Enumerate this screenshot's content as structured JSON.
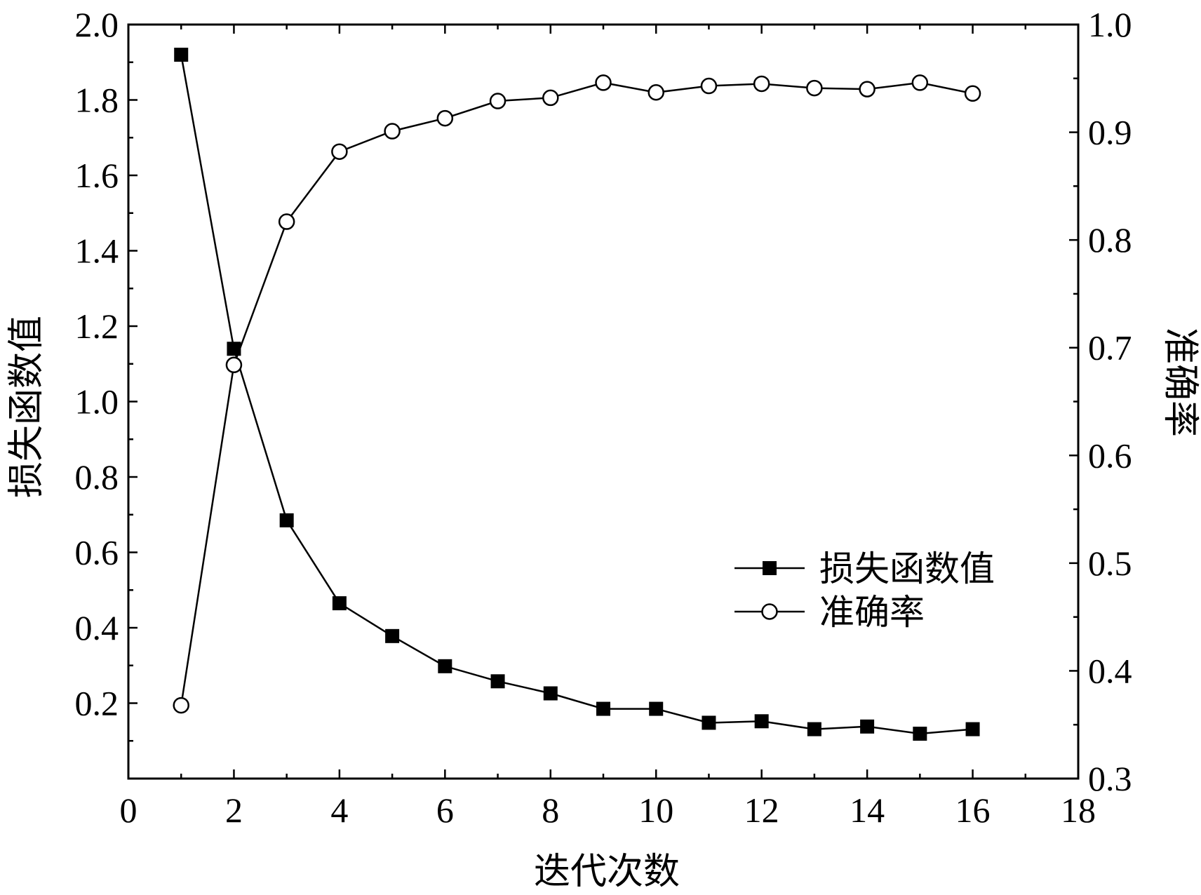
{
  "chart_data": {
    "type": "line",
    "xlabel": "迭代次数",
    "ylabel": "损失函数值",
    "y2label": "准确率",
    "xlim": [
      0,
      18
    ],
    "ylim": [
      0.0,
      2.0
    ],
    "y2lim": [
      0.3,
      1.0
    ],
    "xticks": [
      0,
      2,
      4,
      6,
      8,
      10,
      12,
      14,
      16,
      18
    ],
    "yticks": [
      "2.0",
      "1.8",
      "1.6",
      "1.4",
      "1.2",
      "1.0",
      "0.8",
      "0.6",
      "0.4",
      "0.2"
    ],
    "y2ticks": [
      "1.0",
      "0.9",
      "0.8",
      "0.7",
      "0.6",
      "0.5",
      "0.4",
      "0.3"
    ],
    "grid": false,
    "legend_position": "center-right",
    "x": [
      1,
      2,
      3,
      4,
      5,
      6,
      7,
      8,
      9,
      10,
      11,
      12,
      13,
      14,
      15,
      16
    ],
    "series": [
      {
        "name": "损失函数值",
        "axis": "left",
        "marker": "filled-square",
        "color": "#000000",
        "values": [
          1.92,
          1.14,
          0.685,
          0.465,
          0.378,
          0.298,
          0.258,
          0.226,
          0.185,
          0.185,
          0.148,
          0.152,
          0.131,
          0.138,
          0.119,
          0.131
        ]
      },
      {
        "name": "准确率",
        "axis": "right",
        "marker": "open-circle",
        "color": "#000000",
        "values": [
          0.368,
          0.684,
          0.817,
          0.882,
          0.901,
          0.913,
          0.929,
          0.932,
          0.946,
          0.937,
          0.943,
          0.945,
          0.941,
          0.94,
          0.946,
          0.936
        ]
      }
    ]
  }
}
